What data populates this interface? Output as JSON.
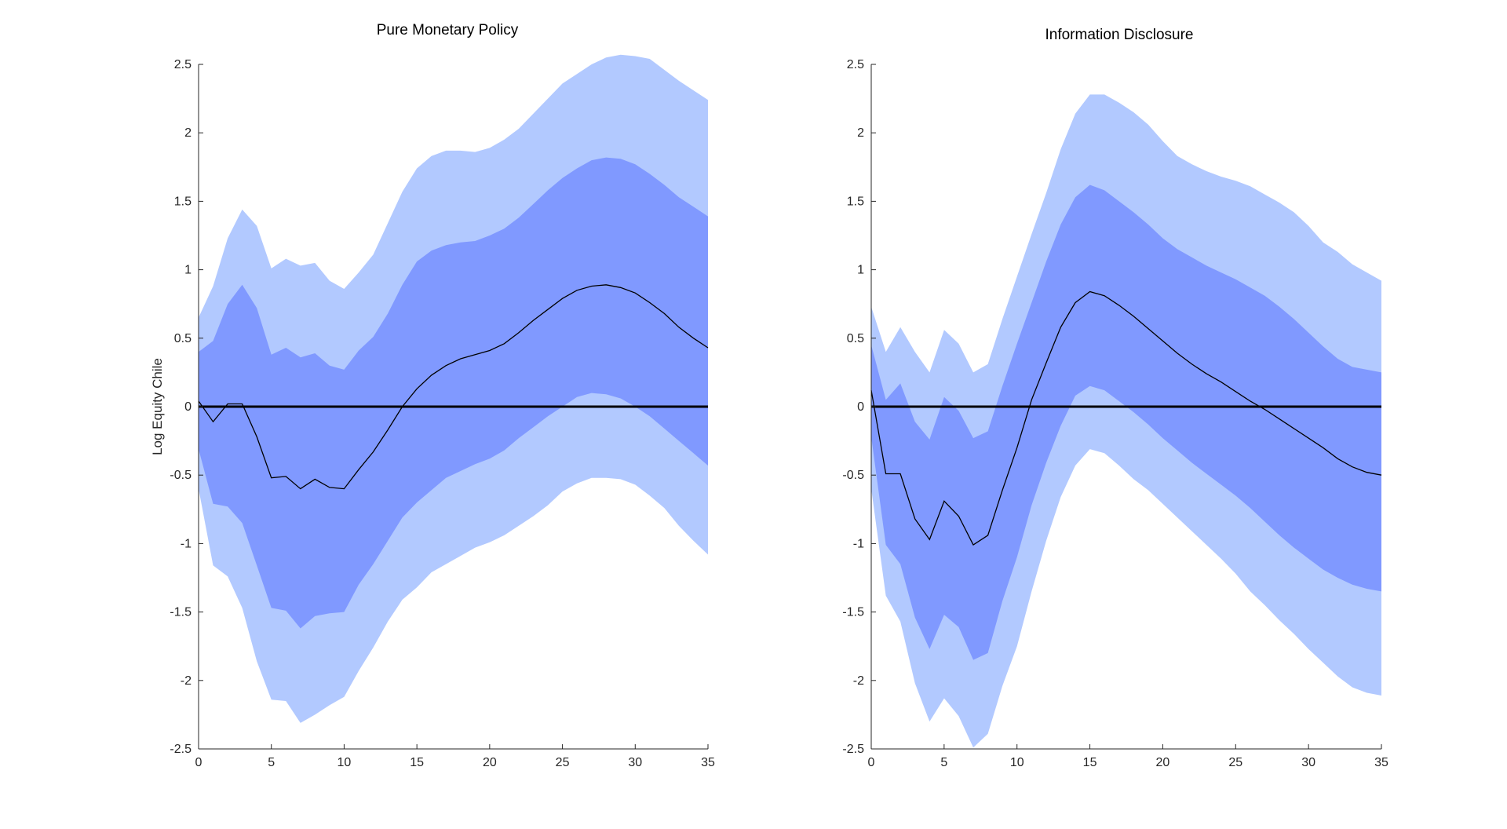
{
  "chart_data": [
    {
      "type": "area",
      "title": "Pure Monetary Policy",
      "xlabel": "",
      "ylabel": "Log Equity Chile",
      "xlim": [
        0,
        35
      ],
      "ylim": [
        -2.5,
        2.5
      ],
      "xticks": [
        0,
        5,
        10,
        15,
        20,
        25,
        30,
        35
      ],
      "yticks": [
        2.5,
        2,
        1.5,
        1,
        0.5,
        0,
        -0.5,
        -1,
        -1.5,
        -2,
        -2.5
      ],
      "x": [
        0,
        1,
        2,
        3,
        4,
        5,
        6,
        7,
        8,
        9,
        10,
        11,
        12,
        13,
        14,
        15,
        16,
        17,
        18,
        19,
        20,
        21,
        22,
        23,
        24,
        25,
        26,
        27,
        28,
        29,
        30,
        31,
        32,
        33,
        34,
        35
      ],
      "series": [
        {
          "name": "outer-upper",
          "values": [
            0.65,
            0.88,
            1.23,
            1.44,
            1.32,
            1.01,
            1.08,
            1.03,
            1.05,
            0.92,
            0.86,
            0.98,
            1.11,
            1.34,
            1.57,
            1.74,
            1.83,
            1.87,
            1.87,
            1.86,
            1.89,
            1.95,
            2.03,
            2.14,
            2.25,
            2.36,
            2.43,
            2.5,
            2.55,
            2.57,
            2.56,
            2.54,
            2.46,
            2.38,
            2.31,
            2.24
          ]
        },
        {
          "name": "inner-upper",
          "values": [
            0.4,
            0.48,
            0.75,
            0.89,
            0.72,
            0.38,
            0.43,
            0.36,
            0.39,
            0.3,
            0.27,
            0.41,
            0.51,
            0.68,
            0.89,
            1.06,
            1.14,
            1.18,
            1.2,
            1.21,
            1.25,
            1.3,
            1.38,
            1.48,
            1.58,
            1.67,
            1.74,
            1.8,
            1.82,
            1.81,
            1.77,
            1.7,
            1.62,
            1.53,
            1.46,
            1.39
          ]
        },
        {
          "name": "median",
          "values": [
            0.04,
            -0.11,
            0.02,
            0.02,
            -0.22,
            -0.52,
            -0.51,
            -0.6,
            -0.53,
            -0.59,
            -0.6,
            -0.46,
            -0.33,
            -0.17,
            0.0,
            0.13,
            0.23,
            0.3,
            0.35,
            0.38,
            0.41,
            0.46,
            0.54,
            0.63,
            0.71,
            0.79,
            0.85,
            0.88,
            0.89,
            0.87,
            0.83,
            0.76,
            0.68,
            0.58,
            0.5,
            0.43
          ]
        },
        {
          "name": "inner-lower",
          "values": [
            -0.31,
            -0.71,
            -0.73,
            -0.85,
            -1.16,
            -1.47,
            -1.49,
            -1.62,
            -1.53,
            -1.51,
            -1.5,
            -1.3,
            -1.15,
            -0.98,
            -0.81,
            -0.7,
            -0.61,
            -0.52,
            -0.47,
            -0.42,
            -0.38,
            -0.32,
            -0.23,
            -0.15,
            -0.07,
            0.0,
            0.07,
            0.1,
            0.09,
            0.06,
            0.0,
            -0.07,
            -0.16,
            -0.25,
            -0.34,
            -0.43
          ]
        },
        {
          "name": "outer-lower",
          "values": [
            -0.6,
            -1.16,
            -1.24,
            -1.47,
            -1.86,
            -2.14,
            -2.15,
            -2.31,
            -2.25,
            -2.18,
            -2.12,
            -1.93,
            -1.76,
            -1.57,
            -1.41,
            -1.32,
            -1.21,
            -1.15,
            -1.09,
            -1.03,
            -0.99,
            -0.94,
            -0.87,
            -0.8,
            -0.72,
            -0.62,
            -0.56,
            -0.52,
            -0.52,
            -0.53,
            -0.57,
            -0.65,
            -0.74,
            -0.87,
            -0.98,
            -1.08
          ]
        }
      ],
      "zero_line": 0
    },
    {
      "type": "area",
      "title": "Information Disclosure",
      "xlabel": "",
      "ylabel": "",
      "xlim": [
        0,
        35
      ],
      "ylim": [
        -2.5,
        2.5
      ],
      "xticks": [
        0,
        5,
        10,
        15,
        20,
        25,
        30,
        35
      ],
      "yticks": [
        2.5,
        2,
        1.5,
        1,
        0.5,
        0,
        -0.5,
        -1,
        -1.5,
        -2,
        -2.5
      ],
      "x": [
        0,
        1,
        2,
        3,
        4,
        5,
        6,
        7,
        8,
        9,
        10,
        11,
        12,
        13,
        14,
        15,
        16,
        17,
        18,
        19,
        20,
        21,
        22,
        23,
        24,
        25,
        26,
        27,
        28,
        29,
        30,
        31,
        32,
        33,
        34,
        35
      ],
      "series": [
        {
          "name": "outer-upper",
          "values": [
            0.73,
            0.4,
            0.58,
            0.4,
            0.25,
            0.56,
            0.46,
            0.25,
            0.31,
            0.64,
            0.95,
            1.26,
            1.56,
            1.88,
            2.14,
            2.28,
            2.28,
            2.22,
            2.15,
            2.06,
            1.94,
            1.83,
            1.77,
            1.72,
            1.68,
            1.65,
            1.61,
            1.55,
            1.49,
            1.42,
            1.32,
            1.2,
            1.13,
            1.04,
            0.98,
            0.92
          ]
        },
        {
          "name": "inner-upper",
          "values": [
            0.45,
            0.05,
            0.17,
            -0.11,
            -0.24,
            0.07,
            -0.03,
            -0.23,
            -0.18,
            0.15,
            0.46,
            0.76,
            1.06,
            1.33,
            1.53,
            1.62,
            1.58,
            1.5,
            1.42,
            1.33,
            1.23,
            1.15,
            1.09,
            1.03,
            0.98,
            0.93,
            0.87,
            0.81,
            0.73,
            0.64,
            0.54,
            0.44,
            0.35,
            0.29,
            0.27,
            0.25
          ]
        },
        {
          "name": "median",
          "values": [
            0.12,
            -0.49,
            -0.49,
            -0.82,
            -0.97,
            -0.69,
            -0.8,
            -1.01,
            -0.94,
            -0.61,
            -0.3,
            0.05,
            0.32,
            0.58,
            0.76,
            0.84,
            0.81,
            0.74,
            0.66,
            0.57,
            0.48,
            0.39,
            0.31,
            0.24,
            0.18,
            0.11,
            0.04,
            -0.02,
            -0.09,
            -0.16,
            -0.23,
            -0.3,
            -0.38,
            -0.44,
            -0.48,
            -0.5
          ]
        },
        {
          "name": "inner-lower",
          "values": [
            -0.22,
            -1.01,
            -1.15,
            -1.54,
            -1.77,
            -1.52,
            -1.61,
            -1.85,
            -1.8,
            -1.42,
            -1.1,
            -0.72,
            -0.41,
            -0.14,
            0.08,
            0.15,
            0.12,
            0.04,
            -0.04,
            -0.13,
            -0.23,
            -0.32,
            -0.41,
            -0.49,
            -0.57,
            -0.65,
            -0.74,
            -0.84,
            -0.94,
            -1.03,
            -1.11,
            -1.19,
            -1.25,
            -1.3,
            -1.33,
            -1.35
          ]
        },
        {
          "name": "outer-lower",
          "values": [
            -0.6,
            -1.38,
            -1.57,
            -2.02,
            -2.3,
            -2.13,
            -2.26,
            -2.49,
            -2.39,
            -2.04,
            -1.75,
            -1.35,
            -0.98,
            -0.66,
            -0.43,
            -0.31,
            -0.34,
            -0.43,
            -0.53,
            -0.61,
            -0.71,
            -0.81,
            -0.91,
            -1.01,
            -1.11,
            -1.22,
            -1.35,
            -1.45,
            -1.56,
            -1.66,
            -1.77,
            -1.87,
            -1.97,
            -2.05,
            -2.09,
            -2.11
          ]
        }
      ],
      "zero_line": 0
    }
  ],
  "colors": {
    "outer_band": "#b2c9ff",
    "inner_band": "#8099ff",
    "median_line": "#000000",
    "zero_line": "#000000",
    "axis": "#262626"
  }
}
